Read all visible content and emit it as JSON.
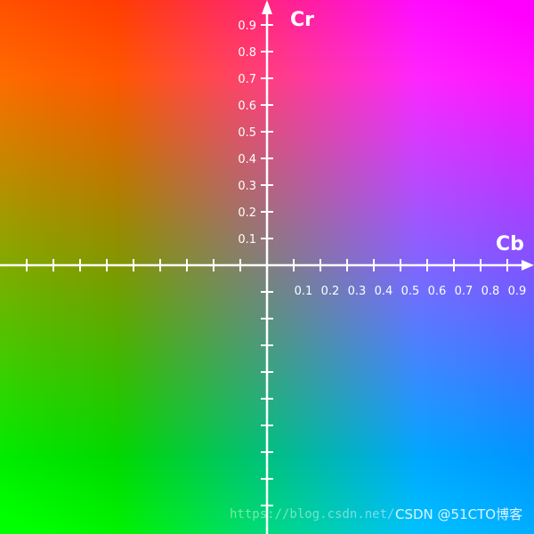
{
  "diagram": {
    "x_axis": {
      "title": "Cb",
      "tick_labels": [
        "0.1",
        "0.2",
        "0.3",
        "0.4",
        "0.5",
        "0.6",
        "0.7",
        "0.8",
        "0.9"
      ]
    },
    "y_axis": {
      "title": "Cr",
      "tick_labels": [
        "0.1",
        "0.2",
        "0.3",
        "0.4",
        "0.5",
        "0.6",
        "0.7",
        "0.8",
        "0.9"
      ]
    },
    "axis_color": "#ffffff",
    "corner_colors": {
      "top_left": "#ff7700",
      "top_right": "#ff00ff",
      "bottom_left": "#00ff00",
      "bottom_right": "#0088ff"
    }
  },
  "watermarks": {
    "url": "https://blog.csdn.net/",
    "credit": "CSDN @51CTO博客"
  }
}
